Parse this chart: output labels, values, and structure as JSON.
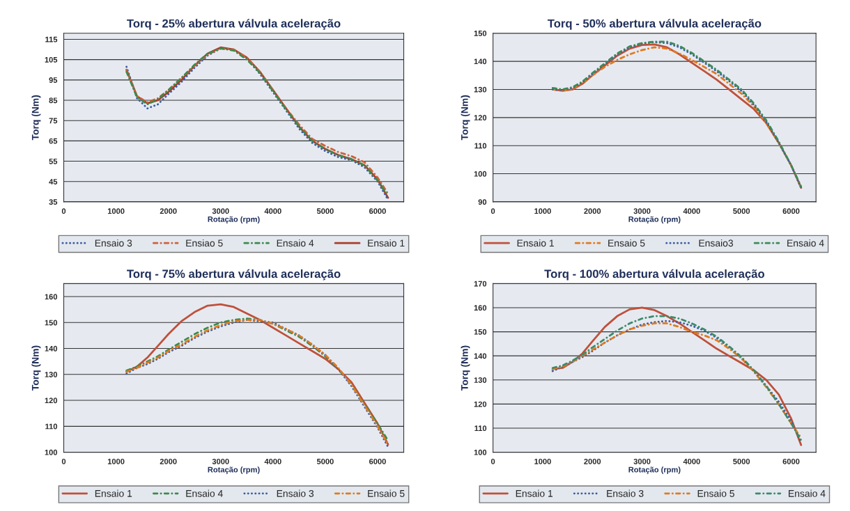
{
  "chart_data": [
    {
      "type": "line",
      "title": "Torq - 25% abertura válvula aceleração",
      "xlabel": "Rotação (rpm)",
      "ylabel": "Torq (Nm)",
      "xlim": [
        0,
        6500
      ],
      "xticks": [
        0,
        1000,
        2000,
        3000,
        4000,
        5000,
        6000
      ],
      "ylim": [
        35,
        118
      ],
      "yticks": [
        35,
        45,
        55,
        65,
        75,
        85,
        95,
        105,
        115
      ],
      "grid": "y",
      "legend": "bottom",
      "x": [
        1200,
        1400,
        1600,
        1800,
        2000,
        2250,
        2500,
        2750,
        3000,
        3250,
        3500,
        3750,
        4000,
        4250,
        4500,
        4750,
        5000,
        5250,
        5500,
        5750,
        6000,
        6200
      ],
      "series": [
        {
          "name": "Ensaio 3",
          "color": "#3b5ba5",
          "line_style": "dotted",
          "values": [
            101.5,
            86,
            81,
            83,
            88,
            94,
            101,
            107,
            110.5,
            110,
            105.5,
            98,
            89,
            80,
            71,
            64,
            60,
            57,
            55.5,
            52,
            45,
            36
          ]
        },
        {
          "name": "Ensiao 5",
          "color": "#d0603a",
          "line_style": "dashed",
          "values": [
            100,
            87,
            84,
            86,
            90,
            96,
            102,
            107.5,
            110.5,
            110,
            106,
            99,
            90,
            81,
            73,
            66,
            62.5,
            59.5,
            57.5,
            54.5,
            47,
            39
          ]
        },
        {
          "name": "Ensaio 4",
          "color": "#3d8a4a",
          "line_style": "dashed",
          "values": [
            99,
            86.5,
            83,
            85.5,
            90,
            96,
            102.5,
            108,
            110.5,
            109.5,
            105,
            98.5,
            89.5,
            80.5,
            72,
            65,
            61,
            58,
            56,
            53,
            45.5,
            38
          ]
        },
        {
          "name": "Ensaio 1",
          "color": "#a83c2c",
          "line_style": "solid",
          "values": [
            100,
            87,
            83.5,
            85,
            89,
            95,
            102,
            108,
            111,
            110,
            106,
            99,
            90,
            81,
            72,
            65,
            61,
            58,
            56,
            53,
            46,
            37
          ]
        }
      ]
    },
    {
      "type": "line",
      "title": "Torq - 50% abertura válvula aceleração",
      "xlabel": "Rotação (rpm)",
      "ylabel": "Torq (Nm)",
      "xlim": [
        0,
        6500
      ],
      "xticks": [
        0,
        1000,
        2000,
        3000,
        4000,
        5000,
        6000
      ],
      "ylim": [
        90,
        150
      ],
      "yticks": [
        90,
        100,
        110,
        120,
        130,
        140,
        150
      ],
      "grid": "y",
      "legend": "bottom",
      "x": [
        1200,
        1400,
        1600,
        1800,
        2000,
        2250,
        2500,
        2750,
        3000,
        3250,
        3500,
        3750,
        4000,
        4250,
        4500,
        4750,
        5000,
        5250,
        5500,
        5750,
        6000,
        6200
      ],
      "series": [
        {
          "name": "Ensaio 1",
          "color": "#c0503a",
          "line_style": "solid",
          "values": [
            130,
            129.5,
            130,
            132,
            135,
            138.5,
            142,
            144.5,
            145.8,
            146,
            145,
            142.5,
            139.5,
            136.5,
            133.5,
            130,
            126.5,
            123,
            118,
            111,
            103,
            95
          ]
        },
        {
          "name": "Ensaio 5",
          "color": "#e07a20",
          "line_style": "dashed",
          "values": [
            130,
            129.5,
            130.2,
            132.3,
            135,
            138,
            140.5,
            142.5,
            144,
            145,
            144.5,
            142.8,
            140.5,
            138,
            135.5,
            132,
            128.5,
            124,
            118,
            111,
            103,
            95
          ]
        },
        {
          "name": "Ensaio3",
          "color": "#3b5ba5",
          "line_style": "dotted",
          "values": [
            130,
            129.8,
            130.5,
            132.5,
            135.5,
            139,
            142.5,
            145,
            146.3,
            146.8,
            146.5,
            145,
            142.5,
            139.5,
            136.5,
            133,
            129.5,
            124.5,
            118.5,
            111,
            103,
            95
          ]
        },
        {
          "name": "Ensaio 4",
          "color": "#3d8a5a",
          "line_style": "dashed",
          "values": [
            130.5,
            130,
            130.8,
            132.8,
            135.8,
            139.3,
            142.8,
            145.3,
            146.5,
            147,
            147,
            145.5,
            143,
            140,
            137,
            133.5,
            130,
            125,
            119,
            111.5,
            103,
            95.5
          ]
        }
      ]
    },
    {
      "type": "line",
      "title": "Torq - 75% abertura válvula aceleração",
      "xlabel": "Rotação (rpm)",
      "ylabel": "Torq (Nm)",
      "xlim": [
        0,
        6500
      ],
      "xticks": [
        0,
        1000,
        2000,
        3000,
        4000,
        5000,
        6000
      ],
      "ylim": [
        100,
        165
      ],
      "yticks": [
        100,
        110,
        120,
        130,
        140,
        150,
        160
      ],
      "grid": "y",
      "legend": "bottom",
      "x": [
        1200,
        1400,
        1600,
        1800,
        2000,
        2250,
        2500,
        2750,
        3000,
        3250,
        3500,
        3750,
        4000,
        4250,
        4500,
        4750,
        5000,
        5250,
        5500,
        5750,
        6000,
        6200
      ],
      "series": [
        {
          "name": "Ensaio 1",
          "color": "#c0503a",
          "line_style": "solid",
          "values": [
            131,
            133,
            136.5,
            141,
            145.5,
            150.5,
            154,
            156.5,
            157,
            156,
            153.5,
            151,
            148,
            145,
            142,
            139,
            136,
            132,
            127,
            119,
            111,
            103
          ]
        },
        {
          "name": "Ensaio 4",
          "color": "#3d8a4a",
          "line_style": "dashed",
          "values": [
            131.5,
            133,
            135,
            137,
            139.5,
            142.5,
            145.5,
            148,
            150,
            151,
            151.5,
            151,
            149.5,
            147,
            144.5,
            141,
            137,
            132,
            126,
            118.5,
            111,
            104.5
          ]
        },
        {
          "name": "Ensaio 3",
          "color": "#3b5ba5",
          "line_style": "dotted",
          "values": [
            130.3,
            132.5,
            134,
            136,
            138.5,
            141,
            144,
            146.5,
            148.5,
            150,
            151,
            150.5,
            150,
            147.5,
            145,
            141.5,
            137.5,
            132,
            125.5,
            117.5,
            109.5,
            102
          ]
        },
        {
          "name": "Ensaio 5",
          "color": "#e07a20",
          "line_style": "dashed",
          "values": [
            131,
            132.5,
            134.5,
            136.5,
            139,
            141.5,
            144.5,
            147,
            149,
            150.5,
            151,
            151,
            149.5,
            147.5,
            145,
            141.5,
            137.5,
            132.5,
            126,
            118,
            110,
            103
          ]
        }
      ]
    },
    {
      "type": "line",
      "title": "Torq - 100% abertura válvula aceleração",
      "xlabel": "Rotação (rpm)",
      "ylabel": "Torq (Nm)",
      "xlim": [
        0,
        6500
      ],
      "xticks": [
        0,
        1000,
        2000,
        3000,
        4000,
        5000,
        6000
      ],
      "ylim": [
        100,
        170
      ],
      "yticks": [
        100,
        110,
        120,
        130,
        140,
        150,
        160,
        170
      ],
      "grid": "y",
      "legend": "bottom",
      "x": [
        1200,
        1400,
        1600,
        1800,
        2000,
        2250,
        2500,
        2750,
        3000,
        3250,
        3500,
        3750,
        4000,
        4250,
        4500,
        4750,
        5000,
        5250,
        5500,
        5750,
        6000,
        6200
      ],
      "series": [
        {
          "name": "Ensaio 1",
          "color": "#c0503a",
          "line_style": "solid",
          "values": [
            134.5,
            135,
            137.5,
            141,
            146,
            152,
            156.5,
            159.3,
            160,
            159,
            156.5,
            153.5,
            150,
            146.5,
            143,
            140,
            137,
            134,
            130,
            124,
            114,
            103
          ]
        },
        {
          "name": "Ensaio 3",
          "color": "#3b5ba5",
          "line_style": "dotted",
          "values": [
            133.7,
            135.5,
            137.5,
            139.5,
            142,
            145.5,
            148.5,
            151,
            153,
            154,
            154.5,
            154,
            152.5,
            150.5,
            147.5,
            143.5,
            139,
            133.5,
            127.5,
            121,
            113,
            104
          ]
        },
        {
          "name": "Ensaio 5",
          "color": "#e07a20",
          "line_style": "dashed",
          "values": [
            134.5,
            135.5,
            137.5,
            140,
            142.5,
            145.5,
            148.5,
            151,
            152.5,
            153.5,
            153.5,
            152,
            150,
            148.5,
            146.5,
            143,
            139,
            133.5,
            127,
            120,
            112,
            106
          ]
        },
        {
          "name": "Ensaio 4",
          "color": "#3d8a6a",
          "line_style": "dashed",
          "values": [
            135,
            136,
            138,
            140.5,
            143.5,
            147,
            150.5,
            153.5,
            155.5,
            156.5,
            156.5,
            155.5,
            153.5,
            151,
            148,
            144,
            139.5,
            134,
            127.5,
            120,
            112,
            105
          ]
        }
      ]
    }
  ]
}
